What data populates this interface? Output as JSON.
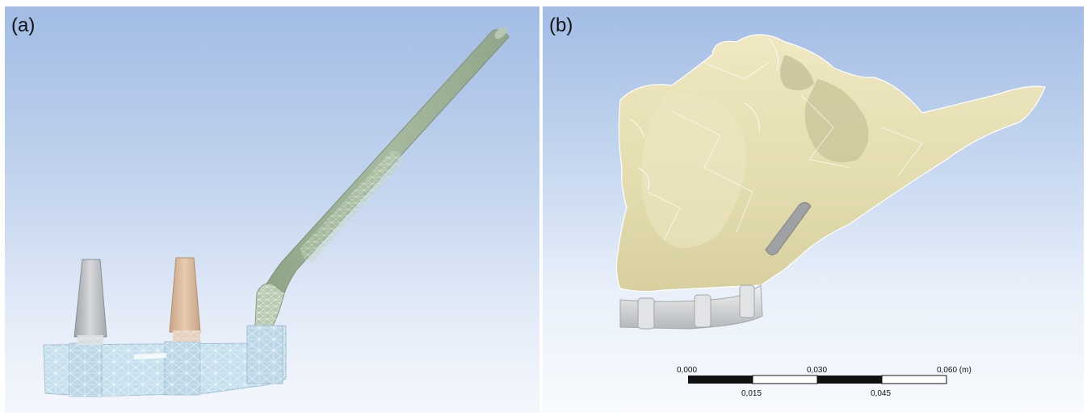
{
  "panels": [
    {
      "label": "(a)"
    },
    {
      "label": "(b)"
    }
  ],
  "scale_bar": {
    "top_labels": [
      "0,000",
      "0,030",
      "0,060 (m)"
    ],
    "bottom_labels": [
      "0,015",
      "0,045"
    ]
  },
  "colors": {
    "mesh_body": "#c6e0ee",
    "mesh_line": "#ffffff",
    "implant_rod": "#a3b59a",
    "abutment_grey": "#bfc3c6",
    "abutment_tan": "#dcbc9e",
    "bone": "#e8e1b3",
    "bar_grey": "#d2d4d6"
  }
}
